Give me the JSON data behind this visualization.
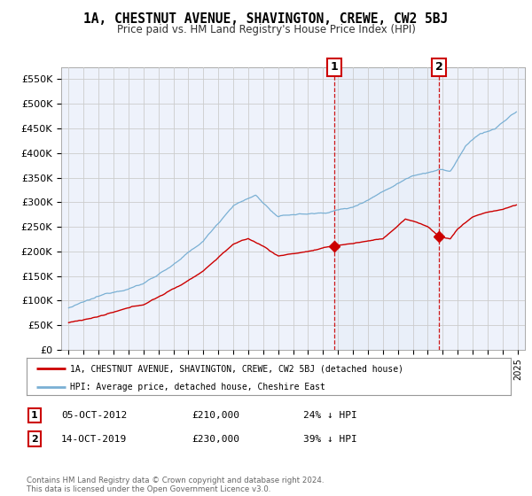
{
  "title": "1A, CHESTNUT AVENUE, SHAVINGTON, CREWE, CW2 5BJ",
  "subtitle": "Price paid vs. HM Land Registry's House Price Index (HPI)",
  "ylabel_ticks": [
    "£0",
    "£50K",
    "£100K",
    "£150K",
    "£200K",
    "£250K",
    "£300K",
    "£350K",
    "£400K",
    "£450K",
    "£500K",
    "£550K"
  ],
  "ytick_values": [
    0,
    50000,
    100000,
    150000,
    200000,
    250000,
    300000,
    350000,
    400000,
    450000,
    500000,
    550000
  ],
  "ylim": [
    0,
    575000
  ],
  "xlim_left": 1994.5,
  "xlim_right": 2025.5,
  "marker1": {
    "year": 2012.75,
    "value": 210000,
    "label": "1",
    "date": "05-OCT-2012",
    "price": "£210,000",
    "pct": "24% ↓ HPI"
  },
  "marker2": {
    "year": 2019.75,
    "value": 230000,
    "label": "2",
    "date": "14-OCT-2019",
    "price": "£230,000",
    "pct": "39% ↓ HPI"
  },
  "legend_line1": "1A, CHESTNUT AVENUE, SHAVINGTON, CREWE, CW2 5BJ (detached house)",
  "legend_line2": "HPI: Average price, detached house, Cheshire East",
  "footer": "Contains HM Land Registry data © Crown copyright and database right 2024.\nThis data is licensed under the Open Government Licence v3.0.",
  "line_color_red": "#cc0000",
  "line_color_blue": "#7ab0d4",
  "fill_color_blue": "#ddeaf4",
  "bg_color": "#eef2fb",
  "grid_color": "#cccccc",
  "marker_box_color": "#cc0000"
}
